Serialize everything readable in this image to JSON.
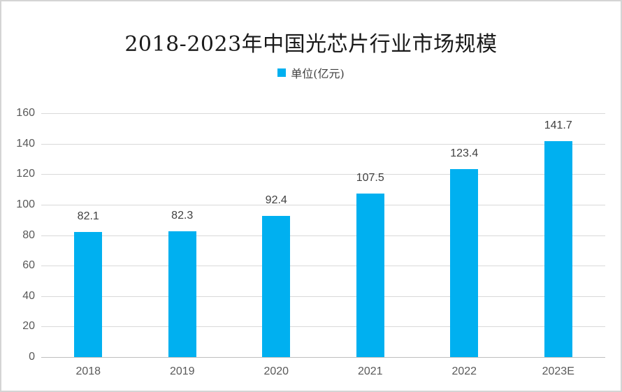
{
  "chart_data": {
    "type": "bar",
    "title": "2018-2023年中国光芯片行业市场规模",
    "legend": {
      "label": "单位(亿元)",
      "position": "top"
    },
    "categories": [
      "2018",
      "2019",
      "2020",
      "2021",
      "2022",
      "2023E"
    ],
    "series": [
      {
        "name": "单位(亿元)",
        "values": [
          82.1,
          82.3,
          92.4,
          107.5,
          123.4,
          141.7
        ]
      }
    ],
    "value_labels": [
      "82.1",
      "82.3",
      "92.4",
      "107.5",
      "123.4",
      "141.7"
    ],
    "xlabel": "",
    "ylabel": "",
    "ylim": [
      0,
      160
    ],
    "ytick_step": 20,
    "ytick_labels": [
      "0",
      "20",
      "40",
      "60",
      "80",
      "100",
      "120",
      "140",
      "160"
    ],
    "grid": true,
    "colors": {
      "bar": "#00B0F0",
      "gridline": "#d9d9d9",
      "axis_line": "#bfbfbf",
      "tick_label": "#595959",
      "value_label": "#404040",
      "title": "#1a1a1a"
    }
  }
}
